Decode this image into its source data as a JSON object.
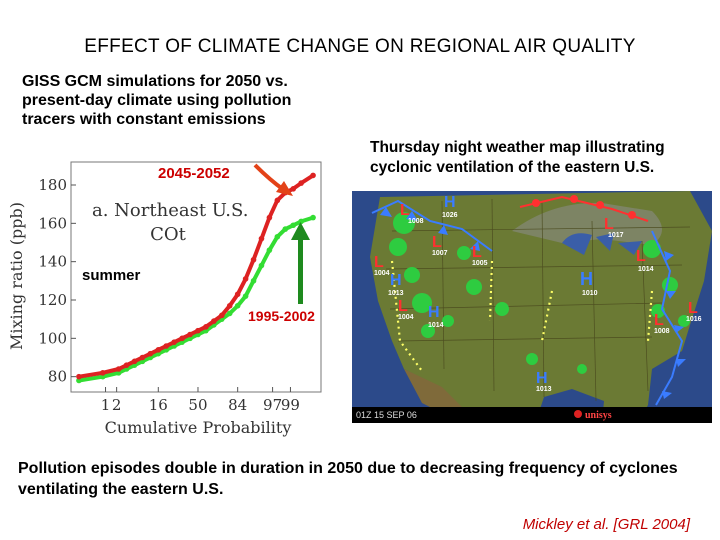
{
  "title": "EFFECT OF CLIMATE CHANGE ON REGIONAL AIR QUALITY",
  "subtitle": "GISS GCM simulations for 2050 vs. present-day climate using pollution tracers with constant emissions",
  "map_caption": "Thursday night weather map illustrating cyclonic ventilation of the eastern U.S.",
  "bottom_text": "Pollution episodes double in duration in 2050 due to decreasing frequency of cyclones ventilating the eastern U.S.",
  "citation": "Mickley et al. [GRL 2004]",
  "colors": {
    "future": "#dd2222",
    "present": "#33dd33",
    "arrow_future": "#e34218",
    "arrow_present": "#1e8a1e",
    "label_future": "#cc0000",
    "label_present": "#cc0000"
  },
  "chart_data": {
    "type": "line",
    "panel_label": "a. Northeast U.S.",
    "panel_species": "COt",
    "season_label": "summer",
    "ylabel": "Mixing ratio (ppb)",
    "xlabel": "Cumulative Probability",
    "x_ticks": [
      "1",
      "2",
      "16",
      "50",
      "84",
      "97",
      "99"
    ],
    "y_ticks": [
      80,
      100,
      120,
      140,
      160,
      180
    ],
    "ylim": [
      72,
      192
    ],
    "series": [
      {
        "name": "2045-2052",
        "color": "#dd2222",
        "x": [
          -3.0,
          -2.4,
          -2.0,
          -1.8,
          -1.6,
          -1.4,
          -1.2,
          -1.0,
          -0.8,
          -0.6,
          -0.4,
          -0.2,
          0.0,
          0.2,
          0.4,
          0.6,
          0.8,
          1.0,
          1.2,
          1.4,
          1.6,
          1.8,
          2.0,
          2.2,
          2.4,
          2.6,
          2.9
        ],
        "y": [
          80,
          82,
          84,
          86,
          88,
          90,
          92,
          94,
          96,
          98,
          100,
          102,
          104,
          106,
          109,
          112,
          117,
          123,
          131,
          141,
          152,
          163,
          172,
          176,
          178,
          181,
          185
        ]
      },
      {
        "name": "1995-2002",
        "color": "#33dd33",
        "x": [
          -3.0,
          -2.4,
          -2.0,
          -1.8,
          -1.6,
          -1.4,
          -1.2,
          -1.0,
          -0.8,
          -0.6,
          -0.4,
          -0.2,
          0.0,
          0.2,
          0.4,
          0.6,
          0.8,
          1.0,
          1.2,
          1.4,
          1.6,
          1.8,
          2.0,
          2.2,
          2.4,
          2.6,
          2.9
        ],
        "y": [
          78,
          80,
          82,
          84,
          86,
          88,
          90,
          92,
          94,
          96,
          98,
          100,
          102,
          104,
          107,
          110,
          113,
          117,
          122,
          130,
          138,
          146,
          153,
          157,
          159,
          161,
          163
        ]
      }
    ]
  },
  "map": {
    "timestamp": "01Z 15 SEP 06",
    "brand": "unisys",
    "pressure_centers": [
      {
        "type": "H",
        "value": "1026"
      },
      {
        "type": "L",
        "value": "1008"
      },
      {
        "type": "L",
        "value": "1007"
      },
      {
        "type": "L",
        "value": "1005"
      },
      {
        "type": "L",
        "value": "1004"
      },
      {
        "type": "H",
        "value": "1013"
      },
      {
        "type": "H",
        "value": "1014"
      },
      {
        "type": "L",
        "value": "1017"
      },
      {
        "type": "L",
        "value": "1014"
      },
      {
        "type": "H",
        "value": "1010"
      },
      {
        "type": "L",
        "value": "1004"
      },
      {
        "type": "L",
        "value": "1016"
      },
      {
        "type": "L",
        "value": "1008"
      },
      {
        "type": "H",
        "value": "1013"
      }
    ]
  }
}
